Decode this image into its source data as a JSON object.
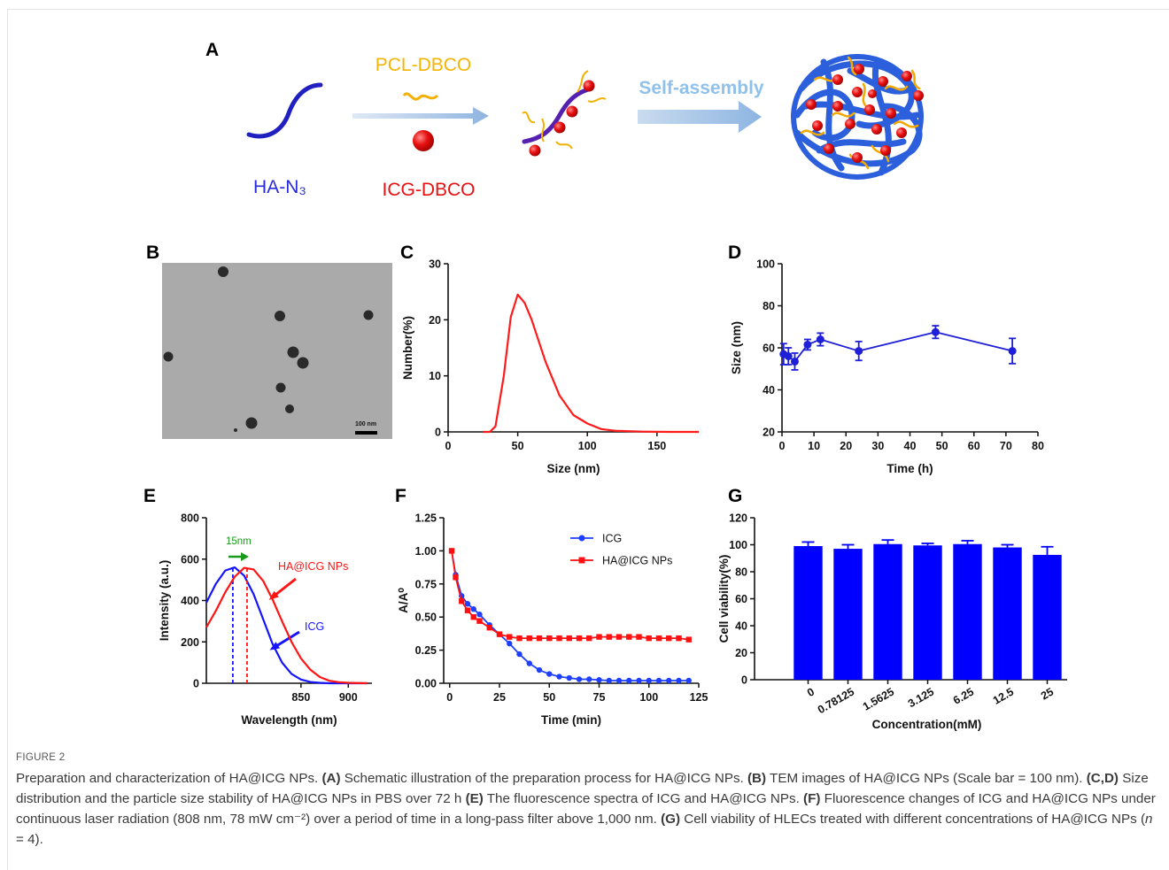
{
  "figure": {
    "schematic": {
      "panel": "A",
      "reagent": "PCL-DBCO",
      "polymer": "HA-N₃",
      "dye": "ICG-DBCO",
      "process": "Self-assembly"
    },
    "tem": {
      "panel": "B",
      "scale_bar": "100 nm"
    },
    "label": "FIGURE 2",
    "caption": [
      {
        "text": "Preparation and characterization of HA@ICG NPs. "
      },
      {
        "text": "(A)",
        "style": "bold"
      },
      {
        "text": " Schematic illustration of the preparation process for HA@ICG NPs. "
      },
      {
        "text": "(B)",
        "style": "bold"
      },
      {
        "text": " TEM images of HA@ICG NPs (Scale bar = 100 nm). "
      },
      {
        "text": "(C,D)",
        "style": "bold"
      },
      {
        "text": " Size distribution and the particle size stability of HA@ICG NPs in PBS over 72 h "
      },
      {
        "text": "(E)",
        "style": "bold"
      },
      {
        "text": " The fluorescence spectra of ICG and HA@ICG NPs. "
      },
      {
        "text": "(F)",
        "style": "bold"
      },
      {
        "text": " Fluorescence changes of ICG and HA@ICG NPs under continuous laser radiation (808 nm, 78 mW cm⁻²) over a period of time in a long-pass filter above 1,000 nm. "
      },
      {
        "text": "(G)",
        "style": "bold"
      },
      {
        "text": " Cell viability of HLECs treated with different concentrations of HA@ICG NPs ("
      },
      {
        "text": "n",
        "style": "italic"
      },
      {
        "text": " = 4)."
      }
    ]
  },
  "chart_data": [
    {
      "type": "line",
      "panel": "C",
      "xlabel": "Size (nm)",
      "ylabel": "Number(%)",
      "xlim": [
        0,
        180
      ],
      "ylim": [
        0,
        30
      ],
      "xticks": [
        0,
        50,
        100,
        150
      ],
      "yticks": [
        0,
        10,
        20,
        30
      ],
      "x": [
        25,
        30,
        34,
        40,
        45,
        50,
        55,
        60,
        70,
        80,
        90,
        100,
        110,
        120,
        140,
        160,
        180
      ],
      "series": [
        {
          "color": "#ff1a1a",
          "values": [
            0,
            0,
            1,
            10,
            20.5,
            24.5,
            23,
            20,
            12.5,
            6.5,
            3,
            1.5,
            0.5,
            0.2,
            0.05,
            0,
            0
          ]
        }
      ]
    },
    {
      "type": "line",
      "panel": "D",
      "xlabel": "Time (h)",
      "ylabel": "Size (nm)",
      "xlim": [
        0,
        80
      ],
      "ylim": [
        20,
        100
      ],
      "xticks": [
        0,
        10,
        20,
        30,
        40,
        50,
        60,
        70,
        80
      ],
      "yticks": [
        20,
        40,
        60,
        80,
        100
      ],
      "x": [
        0.5,
        2,
        4,
        8,
        12,
        24,
        48,
        72
      ],
      "series": [
        {
          "color": "#1f1fd8",
          "marker": "circle",
          "values": [
            57,
            56,
            53.5,
            61.5,
            64,
            58.5,
            67.5,
            58.5
          ],
          "errors": [
            5,
            4,
            4,
            2.5,
            3,
            4.5,
            3,
            6
          ]
        }
      ]
    },
    {
      "type": "line",
      "panel": "E",
      "xlabel": "Wavelength (nm)",
      "ylabel": "Intensity (a.u.)",
      "xlim": [
        750,
        925
      ],
      "ylim": [
        0,
        800
      ],
      "xticks": [
        850,
        900
      ],
      "yticks": [
        0,
        200,
        400,
        600,
        800
      ],
      "x": [
        750,
        760,
        770,
        780,
        790,
        800,
        810,
        820,
        830,
        840,
        850,
        860,
        870,
        880,
        890,
        900,
        910,
        920
      ],
      "series": [
        {
          "name": "ICG",
          "color": "#1414ff",
          "peak": 778,
          "values": [
            390,
            480,
            545,
            560,
            520,
            430,
            310,
            190,
            100,
            45,
            18,
            6,
            2,
            0,
            0,
            0,
            0,
            0
          ]
        },
        {
          "name": "HA@ICG NPs",
          "color": "#ff1414",
          "peak": 793,
          "values": [
            270,
            350,
            440,
            515,
            558,
            550,
            495,
            405,
            300,
            200,
            120,
            65,
            30,
            12,
            5,
            2,
            1,
            0
          ]
        }
      ],
      "annotations": [
        {
          "text": "15nm",
          "color": "#1a9a1a"
        }
      ]
    },
    {
      "type": "line",
      "panel": "F",
      "xlabel": "Time (min)",
      "ylabel": "A/A⁰",
      "legend": "upper right",
      "xlim": [
        -3,
        125
      ],
      "ylim": [
        0,
        1.25
      ],
      "xticks": [
        0,
        25,
        50,
        75,
        100,
        125
      ],
      "yticks": [
        {
          "value": 0,
          "label": "0.00"
        },
        {
          "value": 0.25,
          "label": "0.25"
        },
        {
          "value": 0.5,
          "label": "0.50"
        },
        {
          "value": 0.75,
          "label": "0.75"
        },
        {
          "value": 1,
          "label": "1.00"
        },
        {
          "value": 1.25,
          "label": "1.25"
        }
      ],
      "x": [
        1,
        3,
        6,
        9,
        12,
        15,
        20,
        25,
        30,
        35,
        40,
        45,
        50,
        55,
        60,
        65,
        70,
        75,
        80,
        85,
        90,
        95,
        100,
        105,
        110,
        115,
        120
      ],
      "series": [
        {
          "name": "ICG",
          "color": "#1f3fff",
          "marker": "circle",
          "values": [
            1,
            0.82,
            0.66,
            0.6,
            0.56,
            0.52,
            0.44,
            0.37,
            0.3,
            0.22,
            0.15,
            0.1,
            0.07,
            0.05,
            0.04,
            0.03,
            0.03,
            0.025,
            0.02,
            0.02,
            0.02,
            0.02,
            0.02,
            0.02,
            0.02,
            0.02,
            0.02
          ]
        },
        {
          "name": "HA@ICG NPs",
          "color": "#ff1010",
          "marker": "square",
          "values": [
            1,
            0.8,
            0.62,
            0.55,
            0.5,
            0.47,
            0.42,
            0.37,
            0.35,
            0.34,
            0.34,
            0.34,
            0.34,
            0.34,
            0.34,
            0.34,
            0.34,
            0.35,
            0.35,
            0.35,
            0.35,
            0.35,
            0.34,
            0.34,
            0.34,
            0.34,
            0.33
          ]
        }
      ]
    },
    {
      "type": "bar",
      "panel": "G",
      "xlabel": "Concentration(mM)",
      "ylabel": "Cell viability(%)",
      "ylim": [
        0,
        120
      ],
      "yticks": [
        0,
        20,
        40,
        60,
        80,
        100,
        120
      ],
      "categories": [
        "0",
        "0.78125",
        "1.5625",
        "3.125",
        "6.25",
        "12.5",
        "25"
      ],
      "color": "#0000ff",
      "values": [
        99,
        97,
        100.5,
        99.5,
        100.5,
        98,
        92.5
      ],
      "errors": [
        3,
        3,
        3,
        1.5,
        2.5,
        2,
        6
      ]
    }
  ]
}
